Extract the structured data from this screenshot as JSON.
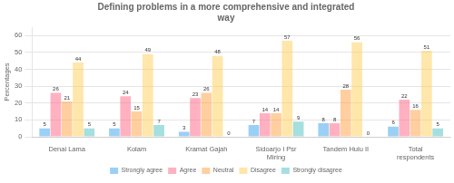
{
  "chart_data": {
    "type": "bar",
    "title": "Defining problems in a more comprehensive and integrated\nway",
    "ylabel": "Percentages",
    "categories": [
      "Denai Lama",
      "Kolam",
      "Kramat Gajah",
      "Sidoarjo I Psr\nMiring",
      "Tandem Hulu II",
      "Total\nrespondents"
    ],
    "series": [
      {
        "name": "Strongly agree",
        "values": [
          5,
          5,
          3,
          7,
          8,
          6
        ]
      },
      {
        "name": "Agree",
        "values": [
          26,
          24,
          23,
          14,
          8,
          22
        ]
      },
      {
        "name": "Neutral",
        "values": [
          21,
          15,
          26,
          14,
          28,
          16
        ]
      },
      {
        "name": "Disagree",
        "values": [
          44,
          49,
          48,
          57,
          56,
          51
        ]
      },
      {
        "name": "Strongly disagree",
        "values": [
          5,
          7,
          0,
          9,
          0,
          5
        ]
      }
    ],
    "ylim": [
      0,
      65
    ],
    "yticks": [
      0,
      10,
      20,
      30,
      40,
      50,
      60
    ],
    "grid": true,
    "legend": "bottom",
    "data_labels": true
  }
}
